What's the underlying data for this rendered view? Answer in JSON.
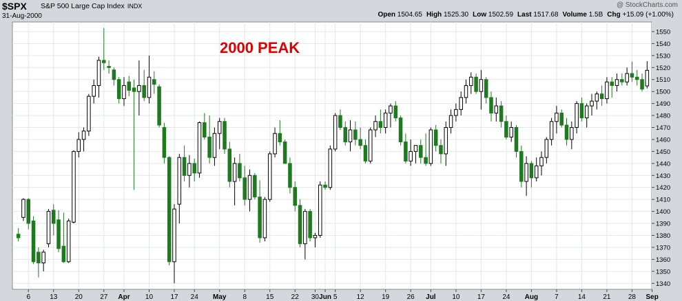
{
  "header": {
    "symbol": "$SPX",
    "name": "S&P 500 Large Cap Index",
    "exchange": "INDX",
    "date": "31-Aug-2000",
    "credit": "@ StockCharts.com",
    "stats": [
      {
        "label": "Open",
        "value": "1504.65"
      },
      {
        "label": "High",
        "value": "1525.30"
      },
      {
        "label": "Low",
        "value": "1502.59"
      },
      {
        "label": "Last",
        "value": "1517.68"
      },
      {
        "label": "Volume",
        "value": "1.5B"
      },
      {
        "label": "Chg",
        "value": "+15.09 (+1.00%)"
      }
    ]
  },
  "colors": {
    "up": "#ffffff",
    "down": "#1e7a1e",
    "plot_bg": "#ffffff",
    "page_bg": "#d4d8dd",
    "grid": "#e3e6ea",
    "annotation": "#dd0000"
  },
  "chart_data": {
    "type": "candlestick",
    "annotation": "2000 PEAK",
    "ylim": [
      1335,
      1558
    ],
    "y_ticks": [
      1340,
      1350,
      1360,
      1370,
      1380,
      1390,
      1400,
      1410,
      1420,
      1430,
      1440,
      1450,
      1460,
      1470,
      1480,
      1490,
      1500,
      1510,
      1520,
      1530,
      1540,
      1550
    ],
    "grid": true,
    "x_ticks": [
      {
        "label": "6",
        "bold": false,
        "i": 2
      },
      {
        "label": "13",
        "bold": false,
        "i": 7
      },
      {
        "label": "20",
        "bold": false,
        "i": 12
      },
      {
        "label": "27",
        "bold": false,
        "i": 17
      },
      {
        "label": "Apr",
        "bold": true,
        "i": 21
      },
      {
        "label": "10",
        "bold": false,
        "i": 26
      },
      {
        "label": "17",
        "bold": false,
        "i": 31
      },
      {
        "label": "24",
        "bold": false,
        "i": 35
      },
      {
        "label": "May",
        "bold": true,
        "i": 40
      },
      {
        "label": "8",
        "bold": false,
        "i": 45
      },
      {
        "label": "15",
        "bold": false,
        "i": 50
      },
      {
        "label": "22",
        "bold": false,
        "i": 55
      },
      {
        "label": "30",
        "bold": false,
        "i": 59
      },
      {
        "label": "Jun",
        "bold": true,
        "i": 61
      },
      {
        "label": "5",
        "bold": false,
        "i": 63
      },
      {
        "label": "12",
        "bold": false,
        "i": 68
      },
      {
        "label": "19",
        "bold": false,
        "i": 73
      },
      {
        "label": "26",
        "bold": false,
        "i": 78
      },
      {
        "label": "Jul",
        "bold": true,
        "i": 82
      },
      {
        "label": "10",
        "bold": false,
        "i": 87
      },
      {
        "label": "17",
        "bold": false,
        "i": 92
      },
      {
        "label": "24",
        "bold": false,
        "i": 97
      },
      {
        "label": "Aug",
        "bold": true,
        "i": 102
      },
      {
        "label": "7",
        "bold": false,
        "i": 107
      },
      {
        "label": "14",
        "bold": false,
        "i": 112
      },
      {
        "label": "21",
        "bold": false,
        "i": 117
      },
      {
        "label": "28",
        "bold": false,
        "i": 122
      },
      {
        "label": "Sep",
        "bold": true,
        "i": 126
      }
    ],
    "ohlc": [
      [
        1381,
        1386,
        1375,
        1378
      ],
      [
        1395,
        1411,
        1392,
        1410
      ],
      [
        1410,
        1411,
        1385,
        1390
      ],
      [
        1392,
        1396,
        1356,
        1358
      ],
      [
        1366,
        1370,
        1345,
        1357
      ],
      [
        1357,
        1368,
        1350,
        1366
      ],
      [
        1373,
        1402,
        1370,
        1400
      ],
      [
        1401,
        1406,
        1380,
        1390
      ],
      [
        1393,
        1401,
        1366,
        1369
      ],
      [
        1371,
        1399,
        1357,
        1358
      ],
      [
        1358,
        1394,
        1357,
        1392
      ],
      [
        1391,
        1451,
        1390,
        1450
      ],
      [
        1450,
        1466,
        1445,
        1460
      ],
      [
        1460,
        1470,
        1450,
        1467
      ],
      [
        1467,
        1498,
        1463,
        1496
      ],
      [
        1496,
        1510,
        1490,
        1505
      ],
      [
        1505,
        1529,
        1495,
        1526
      ],
      [
        1526,
        1553,
        1518,
        1524
      ],
      [
        1521,
        1526,
        1515,
        1520
      ],
      [
        1518,
        1520,
        1505,
        1510
      ],
      [
        1510,
        1512,
        1490,
        1494
      ],
      [
        1494,
        1512,
        1488,
        1505
      ],
      [
        1508,
        1513,
        1496,
        1501
      ],
      [
        1503,
        1510,
        1418,
        1500
      ],
      [
        1500,
        1526,
        1480,
        1505
      ],
      [
        1505,
        1518,
        1492,
        1495
      ],
      [
        1495,
        1530,
        1490,
        1512
      ],
      [
        1510,
        1517,
        1498,
        1506
      ],
      [
        1504,
        1506,
        1470,
        1472
      ],
      [
        1470,
        1474,
        1440,
        1445
      ],
      [
        1445,
        1446,
        1355,
        1358
      ],
      [
        1358,
        1406,
        1340,
        1402
      ],
      [
        1406,
        1448,
        1390,
        1445
      ],
      [
        1445,
        1455,
        1425,
        1430
      ],
      [
        1430,
        1447,
        1420,
        1440
      ],
      [
        1440,
        1444,
        1425,
        1432
      ],
      [
        1432,
        1475,
        1428,
        1474
      ],
      [
        1474,
        1482,
        1460,
        1462
      ],
      [
        1462,
        1480,
        1440,
        1445
      ],
      [
        1445,
        1470,
        1438,
        1465
      ],
      [
        1465,
        1478,
        1452,
        1475
      ],
      [
        1475,
        1478,
        1448,
        1452
      ],
      [
        1452,
        1458,
        1420,
        1425
      ],
      [
        1425,
        1445,
        1405,
        1440
      ],
      [
        1440,
        1448,
        1425,
        1428
      ],
      [
        1428,
        1438,
        1405,
        1410
      ],
      [
        1410,
        1435,
        1400,
        1430
      ],
      [
        1430,
        1432,
        1410,
        1412
      ],
      [
        1412,
        1426,
        1374,
        1378
      ],
      [
        1378,
        1412,
        1375,
        1410
      ],
      [
        1410,
        1450,
        1408,
        1448
      ],
      [
        1448,
        1470,
        1445,
        1465
      ],
      [
        1465,
        1476,
        1455,
        1458
      ],
      [
        1458,
        1460,
        1440,
        1440
      ],
      [
        1440,
        1445,
        1415,
        1420
      ],
      [
        1420,
        1425,
        1400,
        1405
      ],
      [
        1405,
        1410,
        1370,
        1373
      ],
      [
        1373,
        1402,
        1360,
        1400
      ],
      [
        1400,
        1402,
        1375,
        1378
      ],
      [
        1378,
        1382,
        1370,
        1380
      ],
      [
        1380,
        1425,
        1378,
        1422
      ],
      [
        1422,
        1425,
        1418,
        1420
      ],
      [
        1420,
        1455,
        1418,
        1452
      ],
      [
        1452,
        1482,
        1450,
        1480
      ],
      [
        1480,
        1485,
        1468,
        1470
      ],
      [
        1470,
        1475,
        1455,
        1458
      ],
      [
        1458,
        1476,
        1450,
        1468
      ],
      [
        1468,
        1475,
        1455,
        1460
      ],
      [
        1460,
        1470,
        1452,
        1455
      ],
      [
        1455,
        1460,
        1440,
        1442
      ],
      [
        1442,
        1470,
        1440,
        1468
      ],
      [
        1468,
        1480,
        1462,
        1475
      ],
      [
        1475,
        1485,
        1465,
        1470
      ],
      [
        1470,
        1485,
        1465,
        1482
      ],
      [
        1482,
        1490,
        1470,
        1488
      ],
      [
        1488,
        1492,
        1475,
        1478
      ],
      [
        1478,
        1480,
        1455,
        1458
      ],
      [
        1458,
        1465,
        1440,
        1442
      ],
      [
        1442,
        1460,
        1438,
        1450
      ],
      [
        1450,
        1455,
        1440,
        1455
      ],
      [
        1455,
        1460,
        1440,
        1445
      ],
      [
        1445,
        1465,
        1438,
        1440
      ],
      [
        1440,
        1470,
        1438,
        1468
      ],
      [
        1468,
        1472,
        1450,
        1455
      ],
      [
        1455,
        1460,
        1440,
        1448
      ],
      [
        1448,
        1475,
        1438,
        1470
      ],
      [
        1470,
        1485,
        1465,
        1480
      ],
      [
        1480,
        1490,
        1475,
        1485
      ],
      [
        1485,
        1500,
        1480,
        1495
      ],
      [
        1495,
        1510,
        1490,
        1505
      ],
      [
        1505,
        1516,
        1498,
        1512
      ],
      [
        1512,
        1515,
        1498,
        1500
      ],
      [
        1500,
        1518,
        1485,
        1510
      ],
      [
        1510,
        1512,
        1490,
        1495
      ],
      [
        1495,
        1500,
        1475,
        1482
      ],
      [
        1482,
        1495,
        1475,
        1488
      ],
      [
        1488,
        1492,
        1470,
        1475
      ],
      [
        1475,
        1480,
        1460,
        1462
      ],
      [
        1462,
        1475,
        1458,
        1470
      ],
      [
        1470,
        1472,
        1445,
        1450
      ],
      [
        1450,
        1455,
        1420,
        1425
      ],
      [
        1425,
        1446,
        1413,
        1440
      ],
      [
        1440,
        1442,
        1420,
        1428
      ],
      [
        1428,
        1445,
        1425,
        1438
      ],
      [
        1438,
        1450,
        1430,
        1445
      ],
      [
        1445,
        1462,
        1440,
        1460
      ],
      [
        1460,
        1478,
        1455,
        1475
      ],
      [
        1475,
        1488,
        1465,
        1482
      ],
      [
        1482,
        1485,
        1470,
        1472
      ],
      [
        1472,
        1478,
        1455,
        1460
      ],
      [
        1460,
        1475,
        1452,
        1470
      ],
      [
        1470,
        1492,
        1465,
        1490
      ],
      [
        1490,
        1495,
        1475,
        1478
      ],
      [
        1478,
        1490,
        1470,
        1488
      ],
      [
        1488,
        1498,
        1480,
        1492
      ],
      [
        1492,
        1500,
        1485,
        1498
      ],
      [
        1498,
        1505,
        1488,
        1494
      ],
      [
        1494,
        1512,
        1490,
        1508
      ],
      [
        1508,
        1512,
        1495,
        1505
      ],
      [
        1505,
        1515,
        1500,
        1510
      ],
      [
        1510,
        1515,
        1505,
        1508
      ],
      [
        1508,
        1520,
        1505,
        1515
      ],
      [
        1515,
        1525,
        1508,
        1512
      ],
      [
        1512,
        1518,
        1505,
        1510
      ],
      [
        1510,
        1515,
        1500,
        1502
      ],
      [
        1504.65,
        1525.3,
        1502.59,
        1517.68
      ]
    ]
  }
}
